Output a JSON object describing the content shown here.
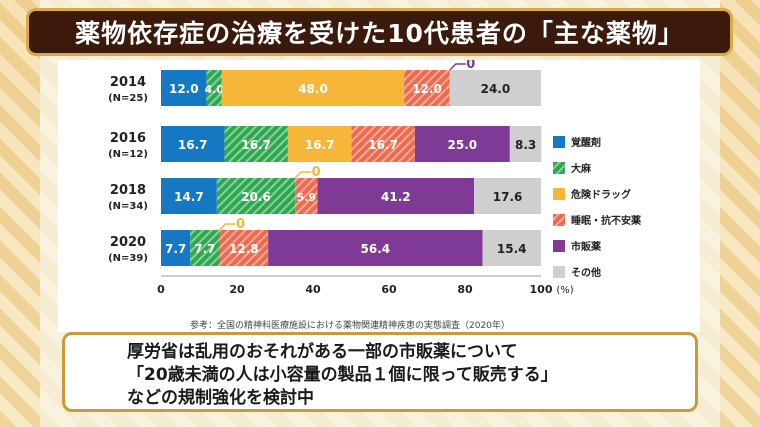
{
  "title": "薬物依存症の治療を受けた10代患者の「主な薬物」",
  "chart_data": {
    "type": "bar",
    "orientation": "horizontal",
    "stacked": true,
    "categories": [
      "2014",
      "2016",
      "2018",
      "2020"
    ],
    "category_sublabels": [
      "(N=25)",
      "(N=12)",
      "(N=34)",
      "(N=39)"
    ],
    "series": [
      {
        "name": "覚醒剤",
        "color": "#1578c2",
        "hatched": false,
        "values": [
          12.0,
          16.7,
          14.7,
          7.7
        ]
      },
      {
        "name": "大麻",
        "color": "#2ea84e",
        "hatched": true,
        "values": [
          4.0,
          16.7,
          20.6,
          7.7
        ]
      },
      {
        "name": "危険ドラッグ",
        "color": "#f5b63a",
        "hatched": false,
        "values": [
          48.0,
          16.7,
          0,
          0
        ]
      },
      {
        "name": "睡眠・抗不安薬",
        "color": "#ee6a4e",
        "hatched": true,
        "values": [
          12.0,
          16.7,
          5.9,
          12.8
        ]
      },
      {
        "name": "市販薬",
        "color": "#7f3a96",
        "hatched": false,
        "values": [
          0,
          25.0,
          41.2,
          56.4
        ]
      },
      {
        "name": "その他",
        "color": "#cfcfcf",
        "hatched": false,
        "values": [
          24.0,
          8.3,
          17.6,
          15.4
        ]
      }
    ],
    "zero_callouts": [
      {
        "category": "2014",
        "series": "市販薬",
        "label": "0"
      },
      {
        "category": "2018",
        "series": "危険ドラッグ",
        "label": "0"
      },
      {
        "category": "2020",
        "series": "危険ドラッグ",
        "label": "0"
      }
    ],
    "xlim": [
      0,
      100
    ],
    "xticks": [
      0,
      20,
      40,
      60,
      80,
      100
    ],
    "xunit": "(%)",
    "legend_position": "right"
  },
  "source_note": "参考：全国の精神科医療施設における薬物関連精神疾患の実態調査（2020年）",
  "caption_lines": [
    "厚労省は乱用のおそれがある一部の市販薬について",
    "「20歳未満の人は小容量の製品１個に限って販売する」",
    "などの規制強化を検討中"
  ]
}
